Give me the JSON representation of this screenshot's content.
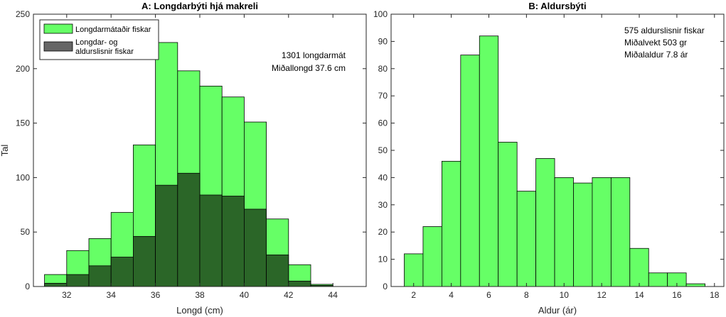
{
  "chart_data": [
    {
      "type": "bar",
      "title": "A:    Longdarbýti hjá makreli",
      "xlabel": "Longd (cm)",
      "ylabel": "Tal",
      "xlim": [
        30.5,
        45.5
      ],
      "ylim": [
        0,
        250
      ],
      "xticks": [
        32,
        34,
        36,
        38,
        40,
        42,
        44
      ],
      "yticks": [
        0,
        50,
        100,
        150,
        200,
        250
      ],
      "bin_width": 1,
      "grid": false,
      "legend_position": "top-left",
      "colors": {
        "light": "#66ff66",
        "dark": "#2b6628",
        "axis": "#262626"
      },
      "annotations": [
        "1301 longdarmát",
        "Miðallongd 37.6 cm"
      ],
      "bin_centers": [
        31.5,
        32.5,
        33.5,
        34.5,
        35.5,
        36.5,
        37.5,
        38.5,
        39.5,
        40.5,
        41.5,
        42.5,
        43.5,
        44.5
      ],
      "series": [
        {
          "name": "Longdarmátaðir fiskar",
          "values": [
            11,
            33,
            44,
            68,
            130,
            224,
            198,
            184,
            174,
            151,
            62,
            20,
            2,
            0
          ]
        },
        {
          "name": "Longdar- og aldurslisnir fiskar",
          "values": [
            3,
            11,
            19,
            27,
            46,
            93,
            104,
            84,
            83,
            71,
            29,
            5,
            1,
            0
          ]
        }
      ]
    },
    {
      "type": "bar",
      "title": "B:    Aldursbýti",
      "xlabel": "Aldur (ár)",
      "ylabel": "",
      "xlim": [
        0.8,
        18.5
      ],
      "ylim": [
        0,
        100
      ],
      "xticks": [
        2,
        4,
        6,
        8,
        10,
        12,
        14,
        16,
        18
      ],
      "yticks": [
        0,
        10,
        20,
        30,
        40,
        50,
        60,
        70,
        80,
        90,
        100
      ],
      "bin_width": 1,
      "grid": false,
      "colors": {
        "light": "#66ff66",
        "axis": "#262626"
      },
      "annotations": [
        "575 aldurslisnir fiskar",
        "Miðalvekt 503 gr",
        "Miðalaldur 7.8 ár"
      ],
      "bin_centers": [
        2,
        3,
        4,
        5,
        6,
        7,
        8,
        9,
        10,
        11,
        12,
        13,
        14,
        15,
        16,
        17
      ],
      "series": [
        {
          "values": [
            12,
            22,
            46,
            85,
            92,
            53,
            35,
            47,
            40,
            38,
            40,
            40,
            14,
            5,
            5,
            1
          ]
        }
      ]
    }
  ]
}
